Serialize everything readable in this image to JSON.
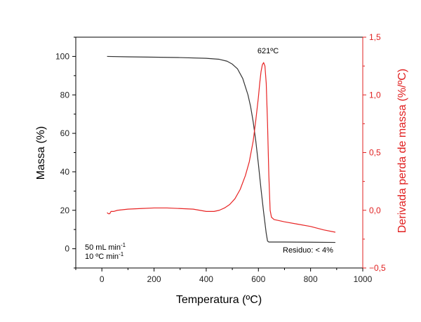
{
  "chart_data": {
    "type": "line",
    "xlabel": "Temperatura (ºC)",
    "ylabel": "Massa (%)",
    "y2label": "Derivada perda de massa (%/ºC)",
    "xlim": [
      -100,
      1000
    ],
    "ylim": [
      -10,
      110
    ],
    "y2lim": [
      -0.5,
      1.5
    ],
    "x_ticks": [
      0,
      200,
      400,
      600,
      800,
      1000
    ],
    "x_tick_labels": [
      "0",
      "200",
      "400",
      "600",
      "800",
      "1000"
    ],
    "y_ticks": [
      0,
      20,
      40,
      60,
      80,
      100
    ],
    "y_tick_labels": [
      "0",
      "20",
      "40",
      "60",
      "80",
      "100"
    ],
    "y2_ticks": [
      -0.5,
      0,
      0.5,
      1,
      1.5
    ],
    "y2_tick_labels": [
      "−0,5",
      "0,0",
      "0,5",
      "1,0",
      "1,5"
    ],
    "grid": false,
    "colors": {
      "mass": "#333333",
      "derivative": "#e82424",
      "right_axis": "#e02020"
    },
    "series": [
      {
        "axis": "left",
        "x": [
          20,
          100,
          200,
          300,
          400,
          450,
          480,
          500,
          520,
          540,
          560,
          570,
          580,
          590,
          600,
          610,
          620,
          630,
          635,
          640,
          650,
          700,
          800,
          895
        ],
        "values": [
          100,
          99.8,
          99.6,
          99.4,
          99.0,
          98.5,
          97.5,
          96.0,
          93.5,
          88.5,
          80.0,
          74.0,
          66.0,
          56.0,
          44.0,
          31.0,
          19.0,
          8.0,
          4.0,
          3.5,
          3.5,
          3.5,
          3.4,
          3.3
        ]
      },
      {
        "axis": "right",
        "x": [
          20,
          25,
          30,
          35,
          45,
          60,
          100,
          150,
          200,
          250,
          300,
          350,
          400,
          430,
          450,
          470,
          490,
          510,
          530,
          550,
          565,
          580,
          590,
          600,
          605,
          610,
          615,
          620,
          625,
          630,
          635,
          640,
          645,
          650,
          660,
          700,
          750,
          800,
          850,
          895
        ],
        "values": [
          -0.02,
          -0.03,
          -0.03,
          -0.01,
          -0.01,
          0.0,
          0.01,
          0.015,
          0.02,
          0.02,
          0.015,
          0.01,
          -0.01,
          -0.01,
          0.0,
          0.02,
          0.05,
          0.1,
          0.18,
          0.3,
          0.42,
          0.6,
          0.78,
          0.98,
          1.1,
          1.2,
          1.26,
          1.28,
          1.25,
          1.1,
          0.75,
          0.3,
          0.0,
          -0.06,
          -0.08,
          -0.1,
          -0.12,
          -0.14,
          -0.17,
          -0.19
        ]
      }
    ],
    "annotations": {
      "peak": {
        "text": "621ºC",
        "x": 621
      },
      "flow_line1_main": "50 mL min",
      "flow_line1_sup": "-1",
      "flow_line2_main": "10 ºC min",
      "flow_line2_sup": "-1",
      "residue": "Residuo: < 4%"
    }
  }
}
